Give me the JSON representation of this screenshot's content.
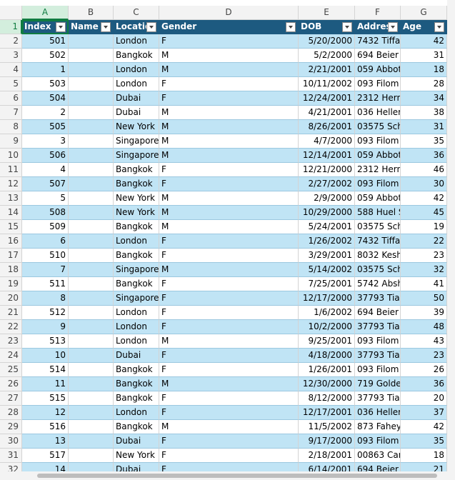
{
  "column_letters": [
    "A",
    "B",
    "C",
    "D",
    "E",
    "F",
    "G"
  ],
  "row_numbers": [
    1,
    2,
    3,
    4,
    5,
    6,
    7,
    8,
    9,
    10,
    11,
    12,
    13,
    14,
    15,
    16,
    17,
    18,
    19,
    20,
    21,
    22,
    23,
    24,
    25,
    26,
    27,
    28,
    29,
    30,
    31,
    32
  ],
  "table": {
    "headers": [
      "Index",
      "Name",
      "Locatio",
      "Gender",
      "DOB",
      "Addres",
      "Age"
    ],
    "rows": [
      {
        "index": 501,
        "location": "London",
        "gender": "F",
        "dob": "5/20/2000",
        "address": "7432 Tiffa",
        "age": 42
      },
      {
        "index": 502,
        "location": "Bangkok",
        "gender": "M",
        "dob": "5/2/2000",
        "address": "694 Beier",
        "age": 31
      },
      {
        "index": 1,
        "location": "London",
        "gender": "M",
        "dob": "2/21/2001",
        "address": "059 Abbot",
        "age": 18
      },
      {
        "index": 503,
        "location": "London",
        "gender": "F",
        "dob": "10/11/2002",
        "address": "093 Filom",
        "age": 28
      },
      {
        "index": 504,
        "location": "Dubai",
        "gender": "F",
        "dob": "12/24/2001",
        "address": "2312 Hern",
        "age": 34
      },
      {
        "index": 2,
        "location": "Dubai",
        "gender": "M",
        "dob": "4/21/2001",
        "address": "036 Heller",
        "age": 38
      },
      {
        "index": 505,
        "location": "New York",
        "gender": "M",
        "dob": "8/26/2001",
        "address": "03575 Sch",
        "age": 31
      },
      {
        "index": 3,
        "location": "Singapore",
        "gender": "M",
        "dob": "4/7/2000",
        "address": "093 Filom",
        "age": 35
      },
      {
        "index": 506,
        "location": "Singapore",
        "gender": "M",
        "dob": "12/14/2001",
        "address": "059 Abbot",
        "age": 36
      },
      {
        "index": 4,
        "location": "Bangkok",
        "gender": "F",
        "dob": "12/21/2000",
        "address": "2312 Hern",
        "age": 46
      },
      {
        "index": 507,
        "location": "Bangkok",
        "gender": "F",
        "dob": "2/27/2002",
        "address": "093 Filom",
        "age": 30
      },
      {
        "index": 5,
        "location": "New York",
        "gender": "M",
        "dob": "2/9/2000",
        "address": "059 Abbot",
        "age": 42
      },
      {
        "index": 508,
        "location": "New York",
        "gender": "M",
        "dob": "10/29/2000",
        "address": "588 Huel S",
        "age": 45
      },
      {
        "index": 509,
        "location": "Bangkok",
        "gender": "M",
        "dob": "5/24/2001",
        "address": "03575 Sch",
        "age": 19
      },
      {
        "index": 6,
        "location": "London",
        "gender": "F",
        "dob": "1/26/2002",
        "address": "7432 Tiffa",
        "age": 22
      },
      {
        "index": 510,
        "location": "Bangkok",
        "gender": "F",
        "dob": "3/29/2001",
        "address": "8032 Kesh",
        "age": 23
      },
      {
        "index": 7,
        "location": "Singapore",
        "gender": "M",
        "dob": "5/14/2002",
        "address": "03575 Sch",
        "age": 32
      },
      {
        "index": 511,
        "location": "Bangkok",
        "gender": "F",
        "dob": "7/25/2001",
        "address": "5742 Absh",
        "age": 41
      },
      {
        "index": 8,
        "location": "Singapore",
        "gender": "F",
        "dob": "12/17/2000",
        "address": "37793 Tia",
        "age": 50
      },
      {
        "index": 512,
        "location": "London",
        "gender": "F",
        "dob": "1/6/2002",
        "address": "694 Beier",
        "age": 39
      },
      {
        "index": 9,
        "location": "London",
        "gender": "F",
        "dob": "10/2/2000",
        "address": "37793 Tia",
        "age": 48
      },
      {
        "index": 513,
        "location": "London",
        "gender": "M",
        "dob": "9/25/2001",
        "address": "093 Filom",
        "age": 43
      },
      {
        "index": 10,
        "location": "Dubai",
        "gender": "F",
        "dob": "4/18/2000",
        "address": "37793 Tia",
        "age": 23
      },
      {
        "index": 514,
        "location": "Bangkok",
        "gender": "F",
        "dob": "1/26/2001",
        "address": "093 Filom",
        "age": 26
      },
      {
        "index": 11,
        "location": "Bangkok",
        "gender": "M",
        "dob": "12/30/2000",
        "address": "719 Golde",
        "age": 36
      },
      {
        "index": 515,
        "location": "Bangkok",
        "gender": "F",
        "dob": "8/12/2000",
        "address": "37793 Tia",
        "age": 20
      },
      {
        "index": 12,
        "location": "London",
        "gender": "F",
        "dob": "12/17/2001",
        "address": "036 Heller",
        "age": 37
      },
      {
        "index": 516,
        "location": "Bangkok",
        "gender": "M",
        "dob": "11/5/2002",
        "address": "873 Fahey",
        "age": 42
      },
      {
        "index": 13,
        "location": "Dubai",
        "gender": "F",
        "dob": "9/17/2000",
        "address": "093 Filom",
        "age": 35
      },
      {
        "index": 517,
        "location": "New York",
        "gender": "F",
        "dob": "2/18/2001",
        "address": "00863 Car",
        "age": 18
      },
      {
        "index": 14,
        "location": "Dubai",
        "gender": "F",
        "dob": "6/14/2001",
        "address": "694 Beier",
        "age": 21
      }
    ]
  }
}
